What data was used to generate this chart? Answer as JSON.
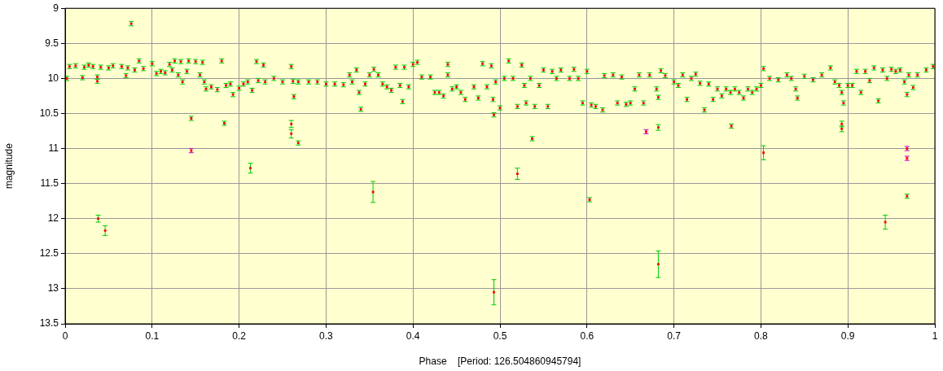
{
  "chart_data": {
    "type": "scatter",
    "xlabel": "Phase    [Period: 126.504860945794]",
    "ylabel": "magnitude",
    "xlim": [
      0,
      1
    ],
    "xticks": [
      0,
      0.1,
      0.2,
      0.3,
      0.4,
      0.5,
      0.6,
      0.7,
      0.8,
      0.9,
      1
    ],
    "ylim": [
      13.5,
      9
    ],
    "yticks": [
      9,
      9.5,
      10,
      10.5,
      11,
      11.5,
      12,
      12.5,
      13,
      13.5
    ],
    "grid": true,
    "marker": "square",
    "legend": false,
    "series": [
      {
        "color": "#ff0000",
        "x": [
          0.002,
          0.005,
          0.012,
          0.02,
          0.022,
          0.027,
          0.032,
          0.037,
          0.037,
          0.041,
          0.05,
          0.055,
          0.065,
          0.07,
          0.072,
          0.076,
          0.08,
          0.085,
          0.09,
          0.1,
          0.105,
          0.11,
          0.115,
          0.12,
          0.123,
          0.126,
          0.13,
          0.133,
          0.135,
          0.14,
          0.142,
          0.15,
          0.155,
          0.158,
          0.16,
          0.162,
          0.168,
          0.175,
          0.18,
          0.185,
          0.19,
          0.193,
          0.2,
          0.205,
          0.21,
          0.215,
          0.22,
          0.222,
          0.228,
          0.23,
          0.24,
          0.25,
          0.26,
          0.262,
          0.263,
          0.268,
          0.28,
          0.29,
          0.3,
          0.31,
          0.32,
          0.327,
          0.33,
          0.335,
          0.338,
          0.34,
          0.345,
          0.35,
          0.355,
          0.36,
          0.365,
          0.37,
          0.375,
          0.38,
          0.385,
          0.388,
          0.39,
          0.395,
          0.4,
          0.405,
          0.41,
          0.42,
          0.425,
          0.43,
          0.435,
          0.44,
          0.44,
          0.445,
          0.45,
          0.455,
          0.46,
          0.47,
          0.475,
          0.48,
          0.485,
          0.49,
          0.492,
          0.495,
          0.5,
          0.505,
          0.51,
          0.515,
          0.52,
          0.525,
          0.528,
          0.53,
          0.535,
          0.54,
          0.545,
          0.55,
          0.555,
          0.56,
          0.565,
          0.57,
          0.58,
          0.585,
          0.59,
          0.595,
          0.6,
          0.605,
          0.61,
          0.618,
          0.62,
          0.63,
          0.635,
          0.64,
          0.645,
          0.65,
          0.655,
          0.66,
          0.665,
          0.672,
          0.68,
          0.682,
          0.685,
          0.69,
          0.7,
          0.705,
          0.71,
          0.715,
          0.72,
          0.725,
          0.73,
          0.735,
          0.74,
          0.745,
          0.75,
          0.755,
          0.76,
          0.765,
          0.77,
          0.775,
          0.78,
          0.785,
          0.79,
          0.795,
          0.8,
          0.803,
          0.81,
          0.82,
          0.83,
          0.835,
          0.84,
          0.842,
          0.85,
          0.86,
          0.87,
          0.88,
          0.885,
          0.89,
          0.893,
          0.895,
          0.9,
          0.905,
          0.91,
          0.915,
          0.92,
          0.925,
          0.93,
          0.935,
          0.94,
          0.945,
          0.95,
          0.955,
          0.96,
          0.965,
          0.968,
          0.97,
          0.975,
          0.98,
          0.99,
          0.998,
          0.038,
          0.046,
          0.145,
          0.183,
          0.213,
          0.26,
          0.26,
          0.268,
          0.354,
          0.493,
          0.493,
          0.52,
          0.537,
          0.603,
          0.682,
          0.682,
          0.766,
          0.803,
          0.893,
          0.893,
          0.943,
          0.968
        ],
        "values": [
          10.0,
          9.83,
          9.82,
          9.99,
          9.84,
          9.81,
          9.83,
          10.04,
          9.98,
          9.84,
          9.85,
          9.82,
          9.83,
          9.96,
          9.85,
          9.22,
          9.88,
          9.75,
          9.86,
          9.79,
          9.93,
          9.9,
          9.92,
          9.8,
          9.88,
          9.75,
          9.95,
          9.76,
          10.05,
          9.9,
          9.75,
          9.76,
          9.95,
          9.77,
          10.05,
          10.15,
          10.12,
          10.16,
          9.75,
          10.1,
          10.08,
          10.23,
          10.14,
          10.08,
          10.05,
          10.17,
          9.76,
          10.03,
          9.81,
          10.05,
          10.0,
          10.05,
          9.83,
          10.04,
          10.26,
          10.05,
          10.05,
          10.05,
          10.08,
          10.08,
          10.09,
          9.95,
          10.05,
          9.88,
          10.2,
          10.44,
          10.08,
          9.95,
          9.87,
          9.95,
          10.08,
          10.12,
          10.17,
          9.84,
          10.1,
          10.33,
          9.84,
          10.12,
          9.8,
          9.77,
          9.98,
          9.98,
          10.2,
          10.2,
          10.25,
          9.95,
          9.8,
          10.15,
          10.12,
          10.2,
          10.3,
          10.12,
          10.28,
          9.79,
          10.12,
          9.82,
          10.3,
          10.05,
          10.42,
          10.0,
          9.75,
          10.0,
          10.4,
          9.81,
          10.1,
          10.35,
          10.0,
          10.4,
          10.1,
          9.88,
          10.4,
          9.9,
          10.0,
          9.88,
          10.0,
          9.87,
          10.0,
          10.35,
          9.9,
          10.38,
          10.4,
          10.45,
          9.96,
          9.95,
          10.35,
          9.98,
          10.37,
          10.35,
          10.15,
          9.95,
          10.35,
          9.95,
          10.15,
          10.27,
          9.89,
          9.96,
          10.05,
          10.1,
          9.95,
          10.3,
          10.0,
          9.94,
          10.07,
          10.45,
          10.08,
          10.3,
          10.15,
          10.25,
          10.15,
          10.2,
          10.15,
          10.2,
          10.28,
          10.15,
          10.2,
          10.15,
          10.1,
          9.86,
          10.0,
          10.02,
          9.95,
          10.0,
          10.15,
          10.28,
          9.97,
          10.02,
          9.95,
          9.85,
          10.05,
          10.1,
          10.2,
          10.35,
          10.1,
          10.1,
          9.9,
          10.2,
          9.9,
          10.03,
          9.85,
          10.32,
          9.88,
          10.0,
          9.87,
          9.9,
          9.88,
          10.05,
          10.23,
          9.95,
          10.13,
          9.95,
          9.88,
          9.83,
          12.0,
          12.17,
          10.57,
          10.64,
          11.28,
          10.65,
          10.79,
          10.92,
          11.62,
          10.52,
          13.05,
          11.36,
          10.86,
          11.73,
          10.7,
          12.65,
          10.68,
          11.06,
          10.65,
          10.72,
          12.05,
          11.68
        ],
        "errors": [
          0.03,
          0.03,
          0.03,
          0.03,
          0.03,
          0.03,
          0.03,
          0.03,
          0.03,
          0.03,
          0.03,
          0.03,
          0.03,
          0.03,
          0.03,
          0.03,
          0.03,
          0.03,
          0.03,
          0.03,
          0.03,
          0.03,
          0.03,
          0.03,
          0.03,
          0.03,
          0.03,
          0.03,
          0.03,
          0.03,
          0.03,
          0.03,
          0.03,
          0.03,
          0.03,
          0.03,
          0.03,
          0.03,
          0.03,
          0.03,
          0.03,
          0.03,
          0.03,
          0.03,
          0.03,
          0.03,
          0.03,
          0.03,
          0.03,
          0.03,
          0.03,
          0.03,
          0.03,
          0.03,
          0.03,
          0.03,
          0.03,
          0.03,
          0.03,
          0.03,
          0.03,
          0.03,
          0.03,
          0.03,
          0.03,
          0.03,
          0.03,
          0.03,
          0.03,
          0.03,
          0.03,
          0.03,
          0.03,
          0.03,
          0.03,
          0.03,
          0.03,
          0.03,
          0.03,
          0.03,
          0.03,
          0.03,
          0.03,
          0.03,
          0.03,
          0.03,
          0.03,
          0.03,
          0.03,
          0.03,
          0.03,
          0.03,
          0.03,
          0.03,
          0.03,
          0.03,
          0.03,
          0.03,
          0.03,
          0.03,
          0.03,
          0.03,
          0.03,
          0.03,
          0.03,
          0.03,
          0.03,
          0.03,
          0.03,
          0.03,
          0.03,
          0.03,
          0.03,
          0.03,
          0.03,
          0.03,
          0.03,
          0.03,
          0.03,
          0.03,
          0.03,
          0.03,
          0.03,
          0.03,
          0.03,
          0.03,
          0.03,
          0.03,
          0.03,
          0.03,
          0.03,
          0.03,
          0.03,
          0.03,
          0.03,
          0.03,
          0.03,
          0.03,
          0.03,
          0.03,
          0.03,
          0.03,
          0.03,
          0.03,
          0.03,
          0.03,
          0.03,
          0.03,
          0.03,
          0.03,
          0.03,
          0.03,
          0.03,
          0.03,
          0.03,
          0.03,
          0.03,
          0.03,
          0.03,
          0.03,
          0.03,
          0.03,
          0.03,
          0.03,
          0.03,
          0.03,
          0.03,
          0.03,
          0.03,
          0.03,
          0.03,
          0.03,
          0.03,
          0.03,
          0.03,
          0.03,
          0.03,
          0.03,
          0.03,
          0.03,
          0.03,
          0.03,
          0.03,
          0.03,
          0.03,
          0.03,
          0.03,
          0.03,
          0.03,
          0.03,
          0.03,
          0.03,
          0.05,
          0.07,
          0.03,
          0.03,
          0.07,
          0.05,
          0.06,
          0.03,
          0.15,
          0.03,
          0.18,
          0.08,
          0.03,
          0.03,
          0.04,
          0.19,
          0.03,
          0.1,
          0.04,
          0.04,
          0.1,
          0.03
        ]
      },
      {
        "color": "#ff0000",
        "x": [
          0.145,
          0.668,
          0.968,
          0.968
        ],
        "values": [
          11.03,
          10.76,
          11.0,
          11.14
        ],
        "errors": [
          0.03,
          0.03,
          0.03,
          0.03
        ]
      }
    ]
  }
}
